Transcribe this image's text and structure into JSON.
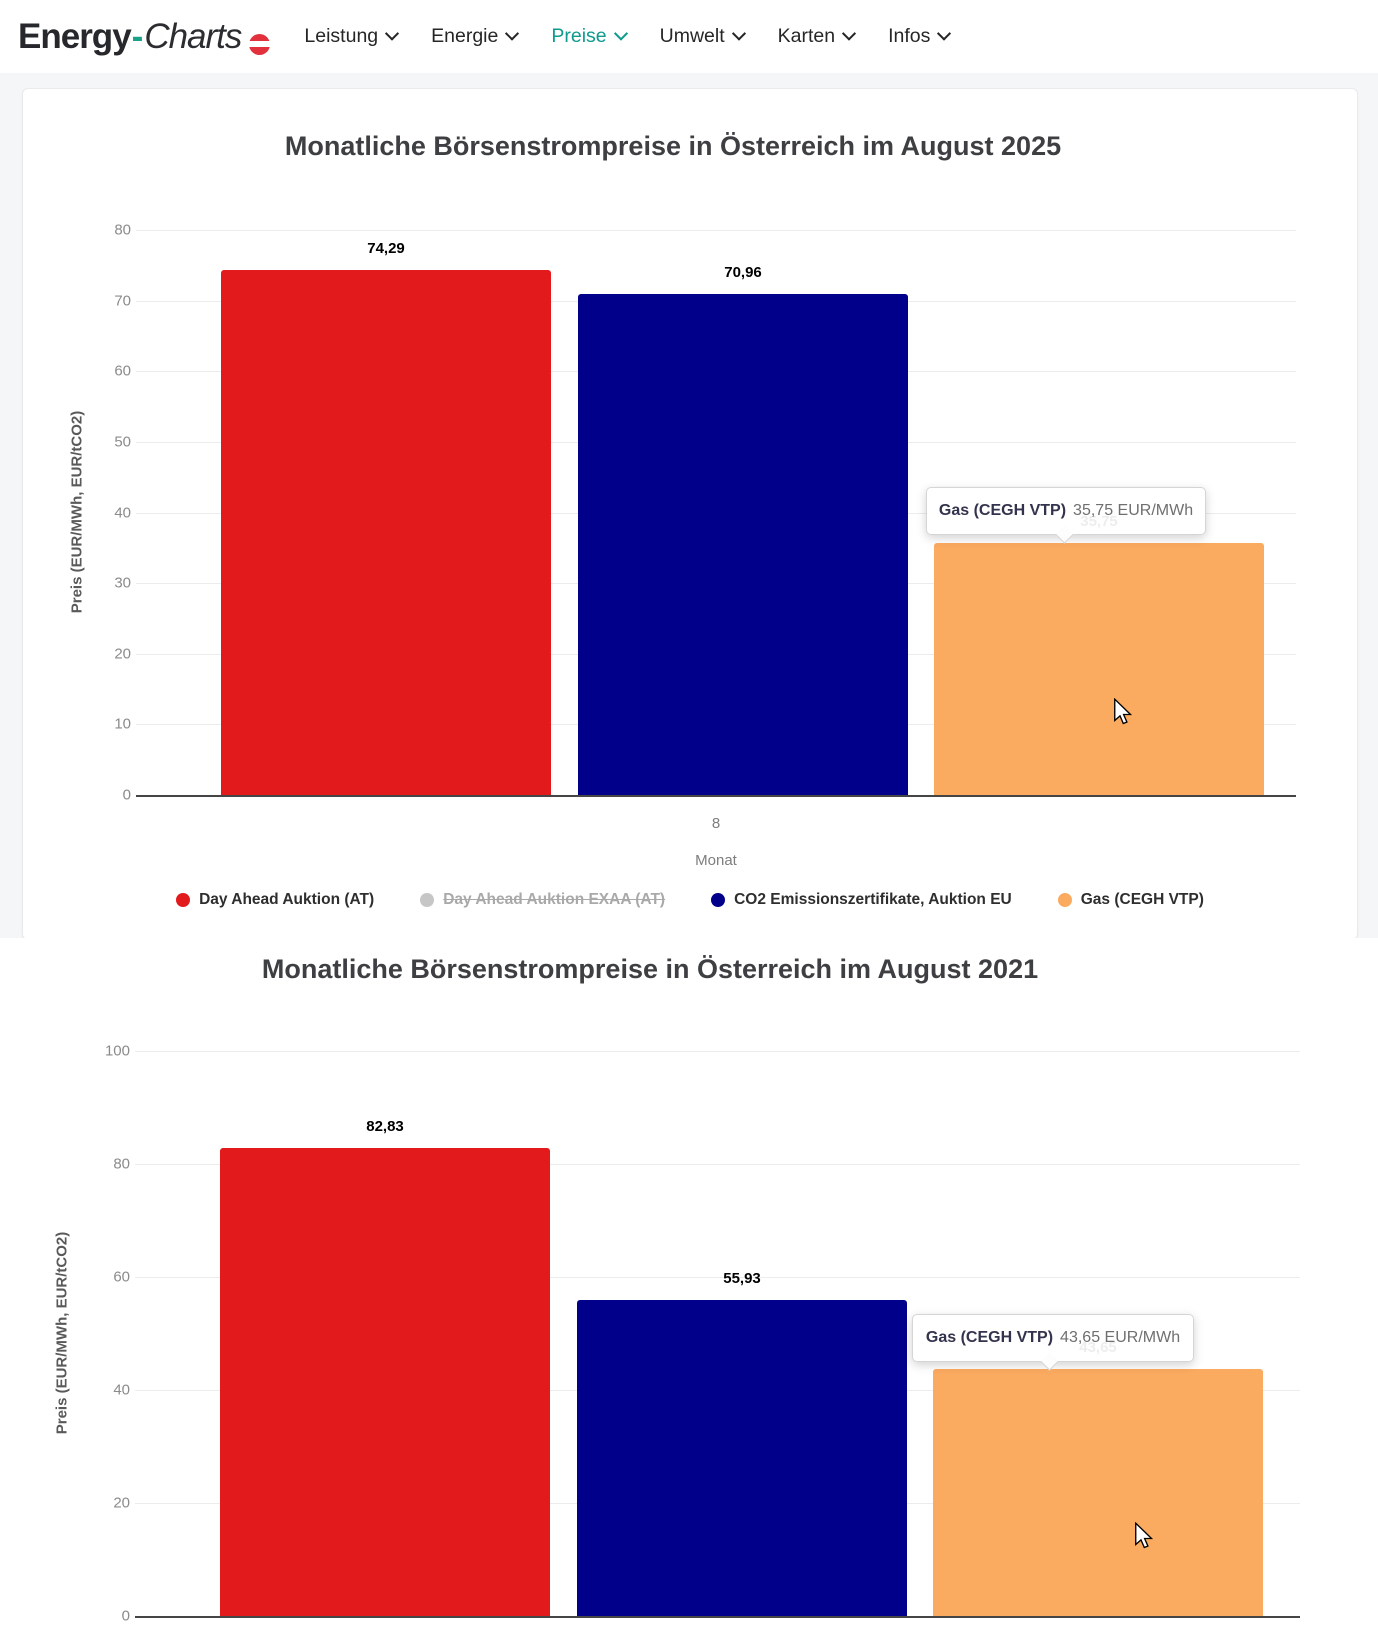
{
  "header": {
    "logo": {
      "energy": "Energy",
      "hyphen": "-",
      "charts": "Charts"
    },
    "nav": [
      {
        "label": "Leistung",
        "active": false
      },
      {
        "label": "Energie",
        "active": false
      },
      {
        "label": "Preise",
        "active": true
      },
      {
        "label": "Umwelt",
        "active": false
      },
      {
        "label": "Karten",
        "active": false
      },
      {
        "label": "Infos",
        "active": false
      }
    ]
  },
  "colors": {
    "day_ahead_red": "#e31a1c",
    "exaa_disabled_gray": "#c6c6c6",
    "co2_navy": "#00008b",
    "gas_orange": "#fbab60",
    "nav_active_teal": "#0f9b8e",
    "page_background": "#f4f6f8"
  },
  "chart_data": [
    {
      "type": "bar",
      "title": "Monatliche Börsenstrompreise in Österreich im August 2025",
      "ylabel": "Preis (EUR/MWh, EUR/tCO2)",
      "xlabel": "Monat",
      "categories": [
        "8"
      ],
      "ylim": [
        0,
        80
      ],
      "yticks": [
        0,
        10,
        20,
        30,
        40,
        50,
        60,
        70,
        80
      ],
      "grid": true,
      "legend_position": "bottom",
      "legend_visible": true,
      "series": [
        {
          "name": "Day Ahead Auktion (AT)",
          "color": "#e31a1c",
          "values": [
            74.29
          ],
          "label": "74,29",
          "enabled": true
        },
        {
          "name": "Day Ahead Auktion EXAA (AT)",
          "color": "#c6c6c6",
          "values": [],
          "label": "",
          "enabled": false
        },
        {
          "name": "CO2 Emissionszertifikate, Auktion EU",
          "color": "#00008b",
          "values": [
            70.96
          ],
          "label": "70,96",
          "enabled": true
        },
        {
          "name": "Gas (CEGH VTP)",
          "color": "#fbab60",
          "values": [
            35.75
          ],
          "label": "35,75",
          "enabled": true
        }
      ],
      "tooltip": {
        "series": "Gas (CEGH VTP)",
        "text": "35,75 EUR/MWh"
      }
    },
    {
      "type": "bar",
      "title": "Monatliche Börsenstrompreise in Österreich im August 2021",
      "ylabel": "Preis (EUR/MWh, EUR/tCO2)",
      "ylim": [
        0,
        100
      ],
      "yticks": [
        0,
        20,
        40,
        60,
        80,
        100
      ],
      "grid": true,
      "legend_visible": false,
      "series": [
        {
          "name": "Day Ahead Auktion (AT)",
          "color": "#e31a1c",
          "values": [
            82.83
          ],
          "label": "82,83",
          "enabled": true
        },
        {
          "name": "CO2 Emissionszertifikate, Auktion EU",
          "color": "#00008b",
          "values": [
            55.93
          ],
          "label": "55,93",
          "enabled": true
        },
        {
          "name": "Gas (CEGH VTP)",
          "color": "#fbab60",
          "values": [
            43.65
          ],
          "label": "43,65",
          "enabled": true
        }
      ],
      "tooltip": {
        "series": "Gas (CEGH VTP)",
        "text": "43,65 EUR/MWh"
      }
    }
  ]
}
